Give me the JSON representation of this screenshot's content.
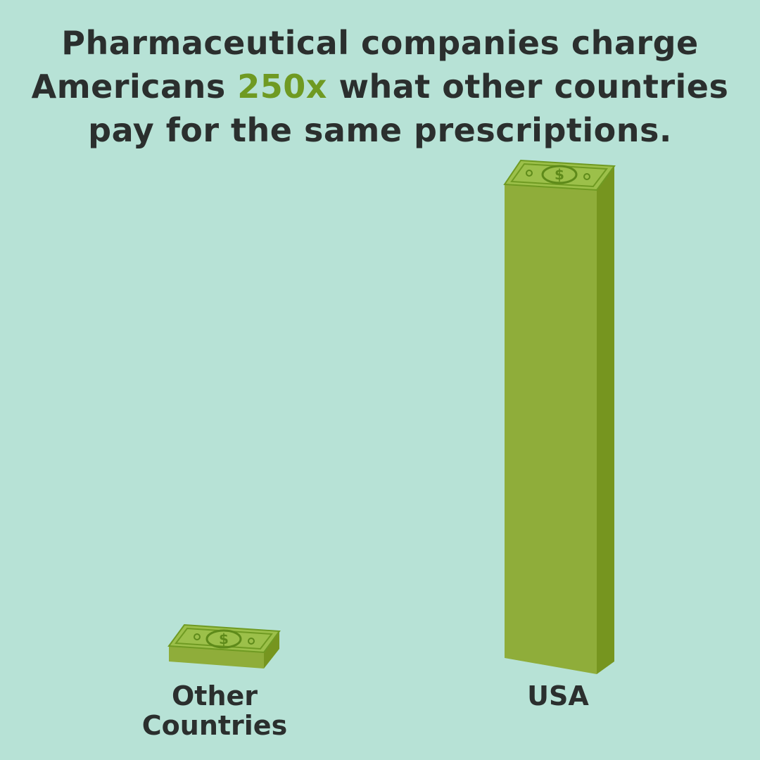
{
  "headline": {
    "line1": "Pharmaceutical companies charge",
    "line2_start": "Americans",
    "highlight": "250x",
    "line2_end": "what other countries",
    "line3": "pay for the same prescriptions."
  },
  "labels": [
    "Other Countries",
    "USA"
  ]
}
